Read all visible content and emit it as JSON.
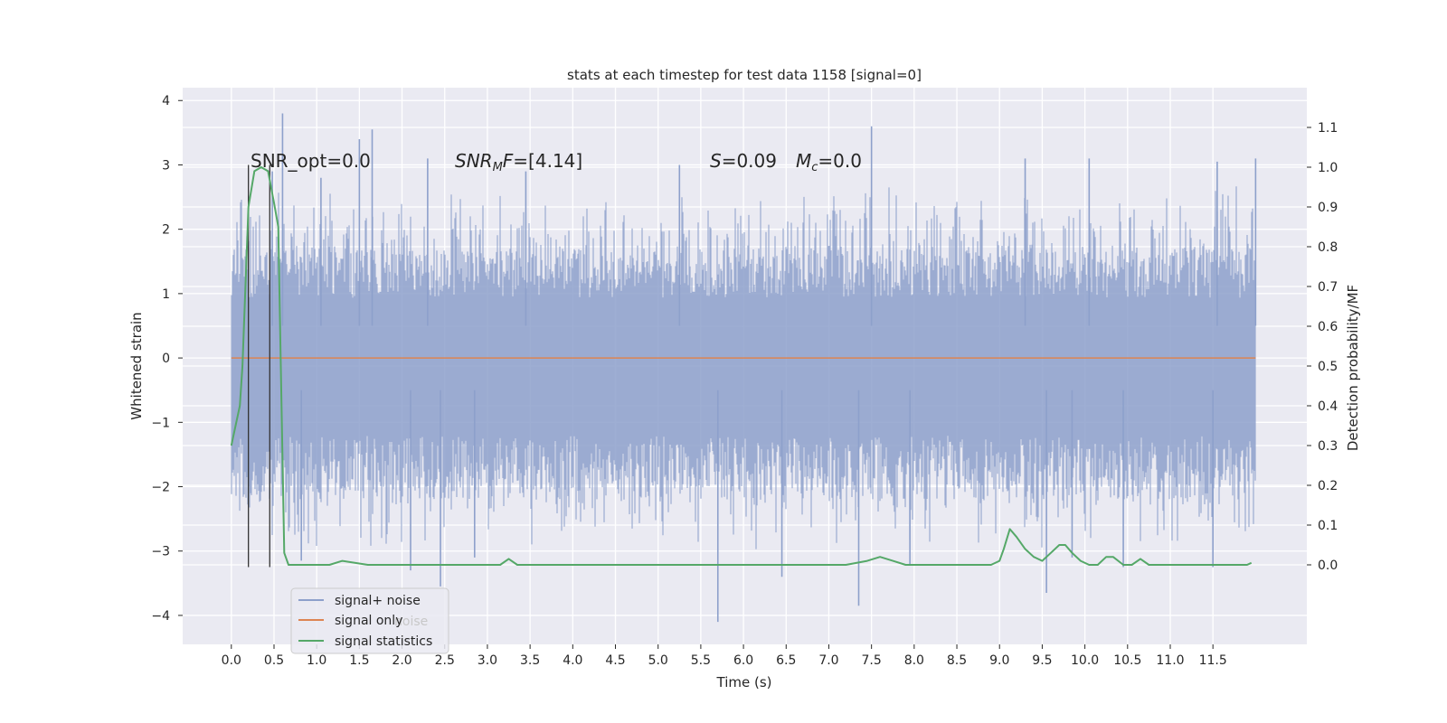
{
  "chart_data": {
    "type": "line",
    "title": "stats at each timestep for test data 1158 [signal=0]",
    "xlabel": "Time (s)",
    "ylabel_left": "Whitened strain",
    "ylabel_right": "Detection probability/MF",
    "xlim": [
      -0.57,
      12.6
    ],
    "ylim_left": [
      -4.45,
      4.2
    ],
    "ylim_right": [
      -0.2,
      1.2
    ],
    "x_ticks": [
      "0.0",
      "0.5",
      "1.0",
      "1.5",
      "2.0",
      "2.5",
      "3.0",
      "3.5",
      "4.0",
      "4.5",
      "5.0",
      "5.5",
      "6.0",
      "6.5",
      "7.0",
      "7.5",
      "8.0",
      "8.5",
      "9.0",
      "9.5",
      "10.0",
      "10.5",
      "11.0",
      "11.5"
    ],
    "y_ticks_left": [
      "4",
      "3",
      "2",
      "1",
      "0",
      "−1",
      "−2",
      "−3",
      "−4"
    ],
    "y_ticks_right": [
      "1.1",
      "1.0",
      "0.9",
      "0.8",
      "0.7",
      "0.6",
      "0.5",
      "0.4",
      "0.3",
      "0.2",
      "0.1",
      "0.0"
    ],
    "grid": true,
    "legend": {
      "placement": "lower-left",
      "entries": [
        {
          "name": "signal+ noise",
          "color": "#8da0cb"
        },
        {
          "name": "signal only",
          "color": "#dd8452"
        },
        {
          "name": "signal statistics",
          "color": "#55a868"
        }
      ],
      "ghost_text": "noise"
    },
    "annotations": {
      "snr_opt": "SNR_opt=0.0",
      "snr_mf_base": "SNR",
      "snr_mf_sub": "M",
      "snr_mf_rest": "F=[4.14]",
      "s_var": "S",
      "s_value": "=0.09",
      "mc_var": "M",
      "mc_sub": "c",
      "mc_value": "=0.0"
    },
    "series": [
      {
        "name": "signal+ noise",
        "axis": "left",
        "color": "#8da0cb",
        "x_range": [
          0.0,
          12.0
        ],
        "envelope": {
          "typical_max": 1.7,
          "typical_min": -2.2
        },
        "peaks": [
          {
            "x": 0.6,
            "y": 3.8
          },
          {
            "x": 0.48,
            "y": 2.9
          },
          {
            "x": 1.05,
            "y": 2.8
          },
          {
            "x": 1.5,
            "y": 3.4
          },
          {
            "x": 1.65,
            "y": 3.55
          },
          {
            "x": 2.3,
            "y": 3.1
          },
          {
            "x": 3.45,
            "y": 2.9
          },
          {
            "x": 5.25,
            "y": 3.0
          },
          {
            "x": 7.5,
            "y": 3.6
          },
          {
            "x": 9.3,
            "y": 3.1
          },
          {
            "x": 10.05,
            "y": 3.1
          },
          {
            "x": 11.55,
            "y": 3.05
          },
          {
            "x": 12.0,
            "y": 3.1
          }
        ],
        "troughs": [
          {
            "x": 0.82,
            "y": -3.15
          },
          {
            "x": 2.1,
            "y": -3.3
          },
          {
            "x": 2.45,
            "y": -3.55
          },
          {
            "x": 2.85,
            "y": -3.1
          },
          {
            "x": 5.7,
            "y": -4.1
          },
          {
            "x": 6.45,
            "y": -3.4
          },
          {
            "x": 7.35,
            "y": -3.85
          },
          {
            "x": 7.95,
            "y": -3.2
          },
          {
            "x": 9.55,
            "y": -3.65
          },
          {
            "x": 9.85,
            "y": -3.1
          },
          {
            "x": 10.45,
            "y": -3.25
          },
          {
            "x": 11.5,
            "y": -3.25
          }
        ]
      },
      {
        "name": "signal only",
        "axis": "left",
        "color": "#dd8452",
        "x": [
          0.0,
          12.0
        ],
        "y": [
          0.0,
          0.0
        ]
      },
      {
        "name": "signal statistics",
        "axis": "right",
        "color": "#55a868",
        "x": [
          0.0,
          0.1,
          0.13,
          0.2,
          0.27,
          0.35,
          0.43,
          0.5,
          0.55,
          0.58,
          0.62,
          0.67,
          0.72,
          0.8,
          1.0,
          1.15,
          1.3,
          1.6,
          2.0,
          2.5,
          3.0,
          3.15,
          3.25,
          3.35,
          3.5,
          4.0,
          5.0,
          6.0,
          6.5,
          7.0,
          7.2,
          7.45,
          7.6,
          7.75,
          7.9,
          8.1,
          8.5,
          8.9,
          9.0,
          9.05,
          9.12,
          9.2,
          9.3,
          9.4,
          9.5,
          9.6,
          9.7,
          9.77,
          9.85,
          9.95,
          10.05,
          10.15,
          10.25,
          10.33,
          10.45,
          10.55,
          10.65,
          10.75,
          11.0,
          11.5,
          11.9,
          11.95
        ],
        "y": [
          0.3,
          0.4,
          0.5,
          0.9,
          0.99,
          1.0,
          0.99,
          0.91,
          0.85,
          0.5,
          0.03,
          0.0,
          0.0,
          0.0,
          0.0,
          0.0,
          0.01,
          0.0,
          0.0,
          0.0,
          0.0,
          0.0,
          0.015,
          0.0,
          0.0,
          0.0,
          0.0,
          0.0,
          0.0,
          0.0,
          0.0,
          0.01,
          0.02,
          0.01,
          0.0,
          0.0,
          0.0,
          0.0,
          0.01,
          0.04,
          0.09,
          0.07,
          0.04,
          0.02,
          0.01,
          0.03,
          0.05,
          0.05,
          0.03,
          0.01,
          0.0,
          0.0,
          0.02,
          0.02,
          0.0,
          0.0,
          0.015,
          0.0,
          0.0,
          0.0,
          0.0,
          0.005
        ]
      }
    ],
    "vertical_lines": {
      "x": [
        0.2,
        0.45
      ],
      "y_from": -3.25,
      "y_to": 3.0,
      "color": "#333333"
    }
  }
}
